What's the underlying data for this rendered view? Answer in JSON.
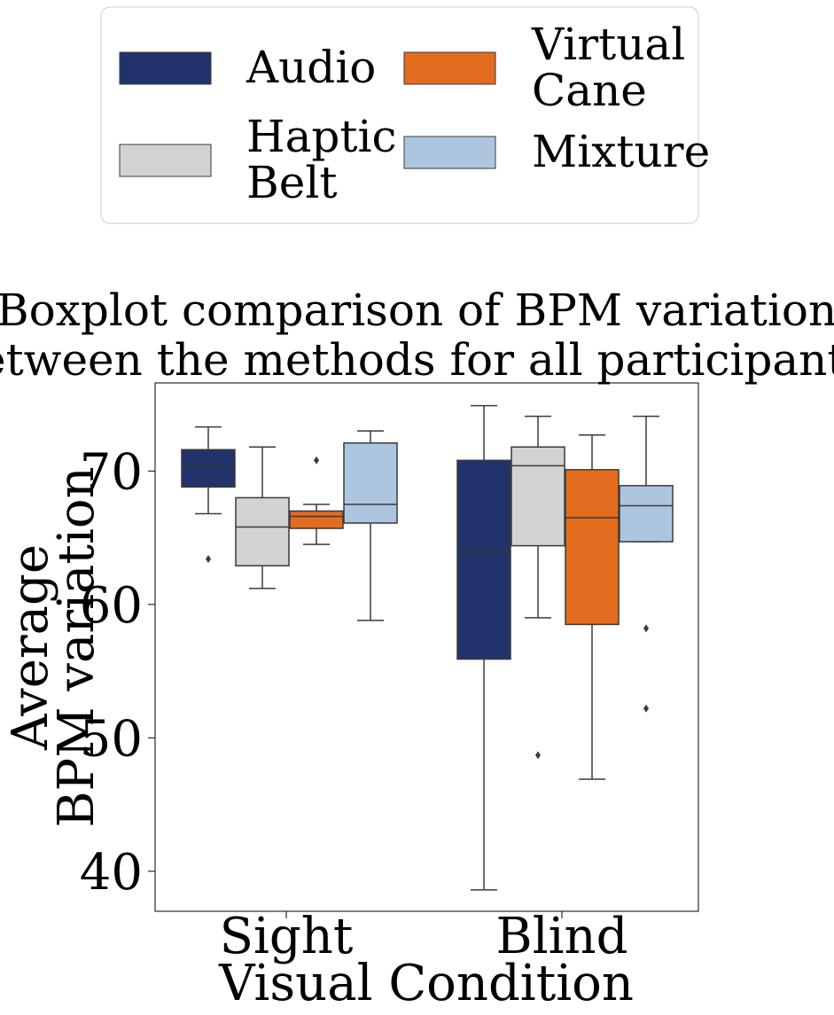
{
  "chart_data": {
    "type": "boxplot",
    "title_lines": [
      "Boxplot comparison of BPM variation",
      "between the methods for all participants."
    ],
    "xlabel": "Visual Condition",
    "ylabel_lines": [
      "Average",
      "BPM variation"
    ],
    "ylim": [
      37,
      76.6
    ],
    "yticks": [
      40,
      50,
      60,
      70
    ],
    "grid": false,
    "legend_position": "top",
    "categories": [
      "Sight",
      "Blind"
    ],
    "series": [
      {
        "name_lines": [
          "Audio"
        ],
        "color": "#22336b",
        "boxes": [
          {
            "q1": 68.8,
            "median": 70.4,
            "q3": 71.6,
            "whisker_low": 66.8,
            "whisker_high": 73.3,
            "outliers": [
              63.4
            ]
          },
          {
            "q1": 55.9,
            "median": 64.1,
            "q3": 70.8,
            "whisker_low": 38.6,
            "whisker_high": 74.9,
            "outliers": []
          }
        ]
      },
      {
        "name_lines": [
          "Haptic",
          "Belt"
        ],
        "color": "#d3d3d3",
        "boxes": [
          {
            "q1": 62.9,
            "median": 65.8,
            "q3": 68.0,
            "whisker_low": 61.2,
            "whisker_high": 71.8,
            "outliers": []
          },
          {
            "q1": 64.4,
            "median": 70.4,
            "q3": 71.8,
            "whisker_low": 59.0,
            "whisker_high": 74.1,
            "outliers": [
              48.7
            ]
          }
        ]
      },
      {
        "name_lines": [
          "Virtual",
          "Cane"
        ],
        "color": "#e36c1f",
        "boxes": [
          {
            "q1": 65.7,
            "median": 66.6,
            "q3": 67.0,
            "whisker_low": 64.5,
            "whisker_high": 67.5,
            "outliers": [
              70.8
            ]
          },
          {
            "q1": 58.5,
            "median": 66.5,
            "q3": 70.1,
            "whisker_low": 46.9,
            "whisker_high": 72.7,
            "outliers": []
          }
        ]
      },
      {
        "name_lines": [
          "Mixture"
        ],
        "color": "#adc6e0",
        "boxes": [
          {
            "q1": 66.1,
            "median": 67.5,
            "q3": 72.1,
            "whisker_low": 58.8,
            "whisker_high": 73.0,
            "outliers": []
          },
          {
            "q1": 64.7,
            "median": 67.4,
            "q3": 68.9,
            "whisker_low": 64.7,
            "whisker_high": 74.1,
            "outliers": [
              58.2,
              52.2
            ]
          }
        ]
      }
    ]
  }
}
